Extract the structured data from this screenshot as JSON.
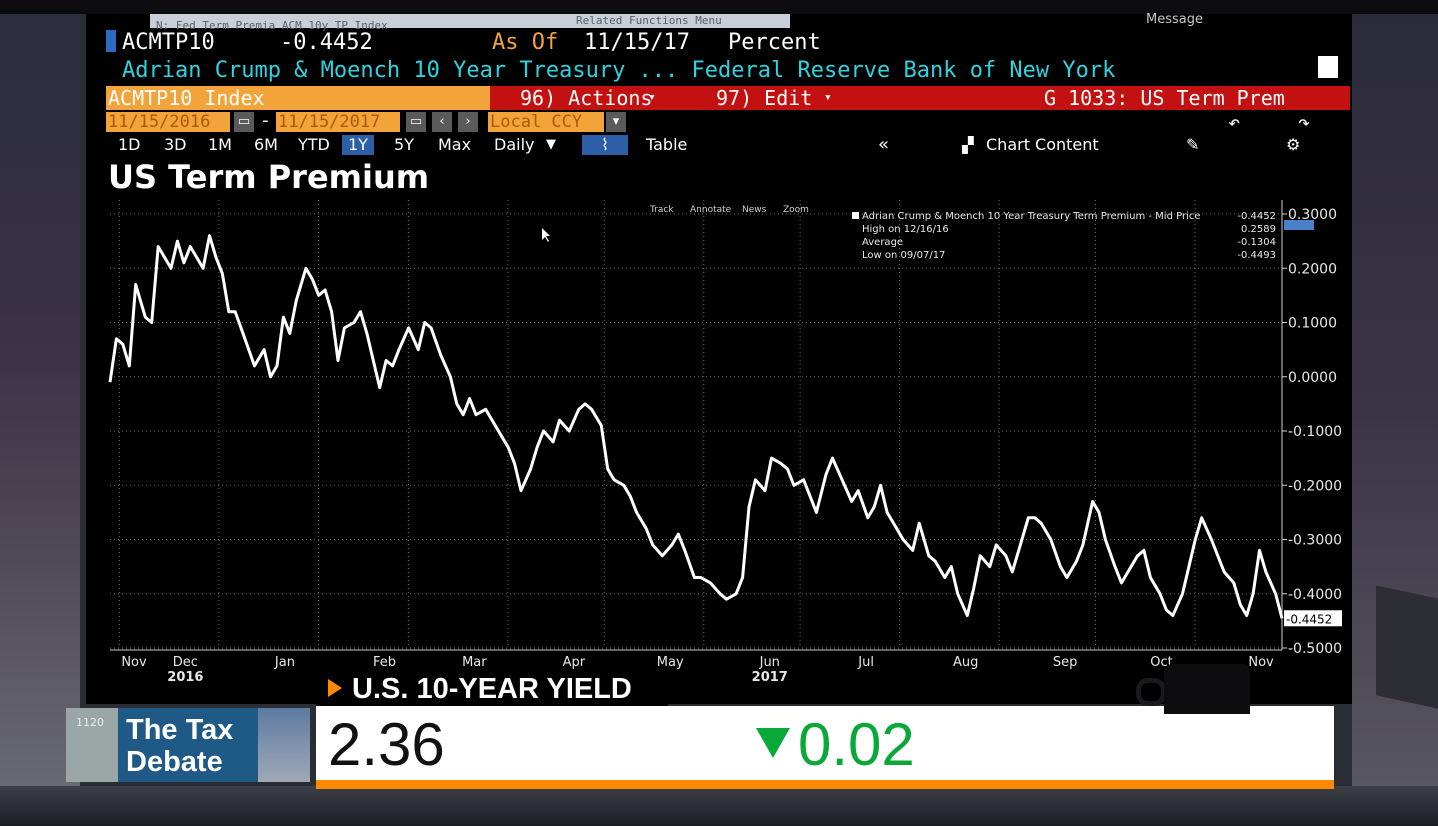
{
  "terminal": {
    "top_field": "N: Fed Term Premia ACM 10y TP Index",
    "top_menu": "Related Functions Menu",
    "top_right": "Message",
    "ticker": "ACMTP10",
    "last_value": "-0.4452",
    "as_of_label": "As Of",
    "as_of_date": "11/15/17",
    "unit": "Percent",
    "description": "Adrian Crump & Moench 10 Year Treasury ... Federal Reserve Bank of New York",
    "security": "ACMTP10 Index",
    "actions": "96) Actions",
    "edit": "97) Edit",
    "function": "G 1033: US Term Prem",
    "start_date": "11/15/2016",
    "end_date": "11/15/2017",
    "currency": "Local CCY",
    "periods": [
      "1D",
      "3D",
      "1M",
      "6M",
      "YTD",
      "1Y",
      "5Y",
      "Max"
    ],
    "active_period": "1Y",
    "frequency": "Daily",
    "table": "Table",
    "chart_content": "Chart Content",
    "chart_tools": [
      "Track",
      "Annotate",
      "News",
      "Zoom"
    ],
    "legend": {
      "series": "Adrian Crump & Moench 10 Year Treasury Term Premium - Mid Price",
      "series_value": "-0.4452",
      "high_label": "High on 12/16/16",
      "high_value": "0.2589",
      "avg_label": "Average",
      "avg_value": "-0.1304",
      "low_label": "Low on 09/07/17",
      "low_value": "-0.4493"
    }
  },
  "chart_data": {
    "type": "line",
    "title": "US Term Premium",
    "ylim": [
      -0.5,
      0.3
    ],
    "y_ticks": [
      "0.3000",
      "0.2000",
      "0.1000",
      "0.0000",
      "-0.1000",
      "-0.2000",
      "-0.3000",
      "-0.4000",
      "-0.5000"
    ],
    "x_ticks": [
      "Nov",
      "Dec",
      "Jan",
      "Feb",
      "Mar",
      "Apr",
      "May",
      "Jun",
      "Jul",
      "Aug",
      "Sep",
      "Oct",
      "Nov"
    ],
    "x_years": [
      "2016",
      "2017"
    ],
    "last_label": "-0.4452",
    "grid": true,
    "series": [
      {
        "color": "#ffffff",
        "x": [
          "2016-11-15",
          "2016-11-17",
          "2016-11-19",
          "2016-11-21",
          "2016-11-23",
          "2016-11-26",
          "2016-11-28",
          "2016-11-30",
          "2016-12-02",
          "2016-12-04",
          "2016-12-06",
          "2016-12-08",
          "2016-12-10",
          "2016-12-12",
          "2016-12-14",
          "2016-12-16",
          "2016-12-18",
          "2016-12-20",
          "2016-12-22",
          "2016-12-24",
          "2016-12-27",
          "2016-12-30",
          "2017-01-02",
          "2017-01-04",
          "2017-01-06",
          "2017-01-08",
          "2017-01-10",
          "2017-01-12",
          "2017-01-15",
          "2017-01-17",
          "2017-01-19",
          "2017-01-21",
          "2017-01-23",
          "2017-01-25",
          "2017-01-27",
          "2017-01-30",
          "2017-02-01",
          "2017-02-03",
          "2017-02-05",
          "2017-02-07",
          "2017-02-09",
          "2017-02-11",
          "2017-02-13",
          "2017-02-16",
          "2017-02-19",
          "2017-02-21",
          "2017-02-23",
          "2017-02-26",
          "2017-03-01",
          "2017-03-03",
          "2017-03-05",
          "2017-03-07",
          "2017-03-09",
          "2017-03-12",
          "2017-03-14",
          "2017-03-16",
          "2017-03-19",
          "2017-03-21",
          "2017-03-23",
          "2017-03-26",
          "2017-03-28",
          "2017-03-30",
          "2017-04-02",
          "2017-04-04",
          "2017-04-07",
          "2017-04-10",
          "2017-04-12",
          "2017-04-14",
          "2017-04-17",
          "2017-04-19",
          "2017-04-21",
          "2017-04-24",
          "2017-04-26",
          "2017-04-28",
          "2017-05-01",
          "2017-05-03",
          "2017-05-06",
          "2017-05-09",
          "2017-05-11",
          "2017-05-13",
          "2017-05-16",
          "2017-05-18",
          "2017-05-21",
          "2017-05-24",
          "2017-05-26",
          "2017-05-29",
          "2017-05-31",
          "2017-06-02",
          "2017-06-04",
          "2017-06-07",
          "2017-06-09",
          "2017-06-12",
          "2017-06-14",
          "2017-06-16",
          "2017-06-19",
          "2017-06-21",
          "2017-06-23",
          "2017-06-26",
          "2017-06-28",
          "2017-07-01",
          "2017-07-04",
          "2017-07-06",
          "2017-07-09",
          "2017-07-11",
          "2017-07-13",
          "2017-07-15",
          "2017-07-18",
          "2017-07-20",
          "2017-07-23",
          "2017-07-25",
          "2017-07-28",
          "2017-07-30",
          "2017-08-02",
          "2017-08-04",
          "2017-08-06",
          "2017-08-09",
          "2017-08-11",
          "2017-08-13",
          "2017-08-16",
          "2017-08-18",
          "2017-08-21",
          "2017-08-23",
          "2017-08-25",
          "2017-08-28",
          "2017-08-30",
          "2017-09-01",
          "2017-09-04",
          "2017-09-07",
          "2017-09-09",
          "2017-09-12",
          "2017-09-14",
          "2017-09-17",
          "2017-09-19",
          "2017-09-21",
          "2017-09-24",
          "2017-09-26",
          "2017-09-28",
          "2017-10-01",
          "2017-10-03",
          "2017-10-05",
          "2017-10-08",
          "2017-10-10",
          "2017-10-12",
          "2017-10-15",
          "2017-10-17",
          "2017-10-19",
          "2017-10-21",
          "2017-10-24",
          "2017-10-26",
          "2017-10-28",
          "2017-10-31",
          "2017-11-02",
          "2017-11-04",
          "2017-11-06",
          "2017-11-08",
          "2017-11-10",
          "2017-11-13",
          "2017-11-15"
        ],
        "values": [
          -0.01,
          0.07,
          0.06,
          0.02,
          0.17,
          0.11,
          0.1,
          0.24,
          0.22,
          0.2,
          0.25,
          0.21,
          0.24,
          0.22,
          0.2,
          0.26,
          0.22,
          0.19,
          0.12,
          0.12,
          0.07,
          0.02,
          0.05,
          0.0,
          0.02,
          0.11,
          0.08,
          0.14,
          0.2,
          0.18,
          0.15,
          0.16,
          0.12,
          0.03,
          0.09,
          0.1,
          0.12,
          0.08,
          0.03,
          -0.02,
          0.03,
          0.02,
          0.05,
          0.09,
          0.05,
          0.1,
          0.09,
          0.04,
          0.0,
          -0.05,
          -0.07,
          -0.04,
          -0.07,
          -0.06,
          -0.08,
          -0.1,
          -0.13,
          -0.16,
          -0.21,
          -0.17,
          -0.13,
          -0.1,
          -0.12,
          -0.08,
          -0.1,
          -0.06,
          -0.05,
          -0.06,
          -0.09,
          -0.17,
          -0.19,
          -0.2,
          -0.22,
          -0.25,
          -0.28,
          -0.31,
          -0.33,
          -0.31,
          -0.29,
          -0.32,
          -0.37,
          -0.37,
          -0.38,
          -0.4,
          -0.41,
          -0.4,
          -0.37,
          -0.24,
          -0.19,
          -0.21,
          -0.15,
          -0.16,
          -0.17,
          -0.2,
          -0.19,
          -0.22,
          -0.25,
          -0.18,
          -0.15,
          -0.19,
          -0.23,
          -0.21,
          -0.26,
          -0.24,
          -0.2,
          -0.25,
          -0.28,
          -0.3,
          -0.32,
          -0.27,
          -0.33,
          -0.34,
          -0.37,
          -0.35,
          -0.4,
          -0.44,
          -0.39,
          -0.33,
          -0.35,
          -0.31,
          -0.33,
          -0.36,
          -0.32,
          -0.26,
          -0.26,
          -0.27,
          -0.3,
          -0.35,
          -0.37,
          -0.34,
          -0.31,
          -0.23,
          -0.25,
          -0.3,
          -0.35,
          -0.38,
          -0.36,
          -0.33,
          -0.32,
          -0.37,
          -0.4,
          -0.43,
          -0.44,
          -0.4,
          -0.35,
          -0.3,
          -0.26,
          -0.3,
          -0.33,
          -0.36,
          -0.38,
          -0.42,
          -0.44,
          -0.4,
          -0.32,
          -0.36,
          -0.4,
          -0.4452
        ]
      }
    ]
  },
  "overlay": {
    "label": "U.S. 10-YEAR YIELD",
    "value": "2.36",
    "change": "0.02",
    "change_direction": "down",
    "show_line1": "The Tax",
    "show_line2": "Debate",
    "show_badge": "1120",
    "colors": {
      "accent": "#ff8a00",
      "down": "#0aa838",
      "show": "#1f5a86"
    }
  }
}
